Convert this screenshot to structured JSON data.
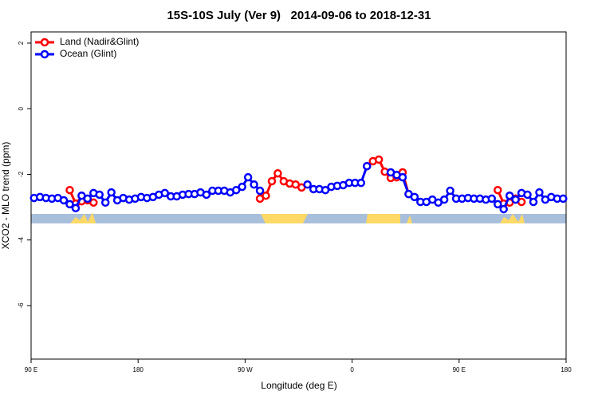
{
  "chart_data": {
    "type": "line",
    "title": "15S-10S July (Ver 9)   2014-09-06 to 2018-12-31",
    "x_label": "Longitude (deg E)",
    "y_label": "XCO2 - MLO trend (ppm)",
    "xlim": [
      90,
      540
    ],
    "xticks": [
      {
        "value": 90,
        "label": "90 E"
      },
      180,
      {
        "value": 270,
        "label": "90 W"
      },
      {
        "value": 360,
        "label": "0"
      },
      {
        "value": 450,
        "label": "90 E"
      },
      {
        "value": 540,
        "label": "180"
      }
    ],
    "ylim": [
      -7.63,
      2.34
    ],
    "yticks": [
      -6,
      -4,
      -2,
      0,
      2
    ],
    "legend": "top-left",
    "x": [
      92.5,
      97.5,
      102.5,
      107.5,
      112.5,
      117.5,
      122.5,
      127.5,
      132.5,
      137.5,
      142.5,
      147.5,
      152.5,
      157.5,
      162.5,
      167.5,
      172.5,
      177.5,
      182.5,
      187.5,
      192.5,
      197.5,
      202.5,
      207.5,
      212.5,
      217.5,
      222.5,
      227.5,
      232.5,
      237.5,
      242.5,
      247.5,
      252.5,
      257.5,
      262.5,
      267.5,
      272.5,
      277.5,
      282.5,
      287.5,
      292.5,
      297.5,
      302.5,
      307.5,
      312.5,
      317.5,
      322.5,
      327.5,
      332.5,
      337.5,
      342.5,
      347.5,
      352.5,
      357.5,
      362.5,
      367.5,
      372.5,
      377.5,
      382.5,
      387.5,
      392.5,
      397.5,
      402.5,
      407.5,
      412.5,
      417.5,
      422.5,
      427.5,
      432.5,
      437.5,
      442.5,
      447.5,
      452.5,
      457.5,
      462.5,
      467.5,
      472.5,
      477.5,
      482.5,
      487.5,
      492.5,
      497.5,
      502.5,
      507.5,
      512.5,
      517.5,
      522.5,
      527.5,
      532.5,
      537.5
    ],
    "series": [
      {
        "name": "Land (Nadir&Glint)",
        "color": "#ff0000",
        "values": [
          null,
          null,
          null,
          null,
          null,
          null,
          -2.48,
          -2.89,
          -2.82,
          -2.79,
          -2.86,
          null,
          null,
          null,
          null,
          null,
          null,
          null,
          null,
          null,
          null,
          null,
          null,
          null,
          null,
          null,
          null,
          null,
          null,
          null,
          null,
          null,
          null,
          null,
          null,
          null,
          null,
          null,
          -2.74,
          -2.65,
          -2.21,
          -1.97,
          -2.21,
          -2.28,
          -2.31,
          -2.4,
          null,
          null,
          null,
          null,
          null,
          null,
          null,
          null,
          null,
          null,
          -1.75,
          -1.6,
          -1.55,
          -1.92,
          -2.11,
          -2.09,
          -1.94,
          -2.6,
          null,
          null,
          null,
          null,
          null,
          null,
          null,
          null,
          null,
          null,
          null,
          null,
          null,
          null,
          -2.48,
          -2.89,
          -2.86,
          -2.74,
          -2.84,
          null,
          null,
          null,
          null,
          null,
          null,
          null
        ]
      },
      {
        "name": "Ocean (Glint)",
        "color": "#0000ff",
        "values": [
          -2.72,
          -2.69,
          -2.72,
          -2.74,
          -2.72,
          -2.79,
          -2.91,
          -3.03,
          -2.65,
          -2.74,
          -2.57,
          -2.62,
          -2.86,
          -2.55,
          -2.79,
          -2.72,
          -2.77,
          -2.74,
          -2.69,
          -2.72,
          -2.69,
          -2.62,
          -2.57,
          -2.67,
          -2.67,
          -2.62,
          -2.6,
          -2.6,
          -2.55,
          -2.62,
          -2.5,
          -2.5,
          -2.5,
          -2.55,
          -2.48,
          -2.38,
          -2.09,
          -2.31,
          -2.5,
          null,
          null,
          null,
          null,
          null,
          null,
          null,
          -2.31,
          -2.45,
          -2.45,
          -2.48,
          -2.38,
          -2.35,
          -2.33,
          -2.26,
          -2.26,
          -2.26,
          -1.75,
          null,
          null,
          null,
          -1.94,
          -2.02,
          -2.09,
          -2.6,
          -2.69,
          -2.84,
          -2.84,
          -2.77,
          -2.86,
          -2.77,
          -2.5,
          -2.74,
          -2.74,
          -2.72,
          -2.74,
          -2.74,
          -2.77,
          -2.74,
          -2.91,
          -3.06,
          -2.65,
          -2.77,
          -2.57,
          -2.62,
          -2.84,
          -2.55,
          -2.77,
          -2.69,
          -2.74,
          -2.74
        ]
      }
    ]
  }
}
